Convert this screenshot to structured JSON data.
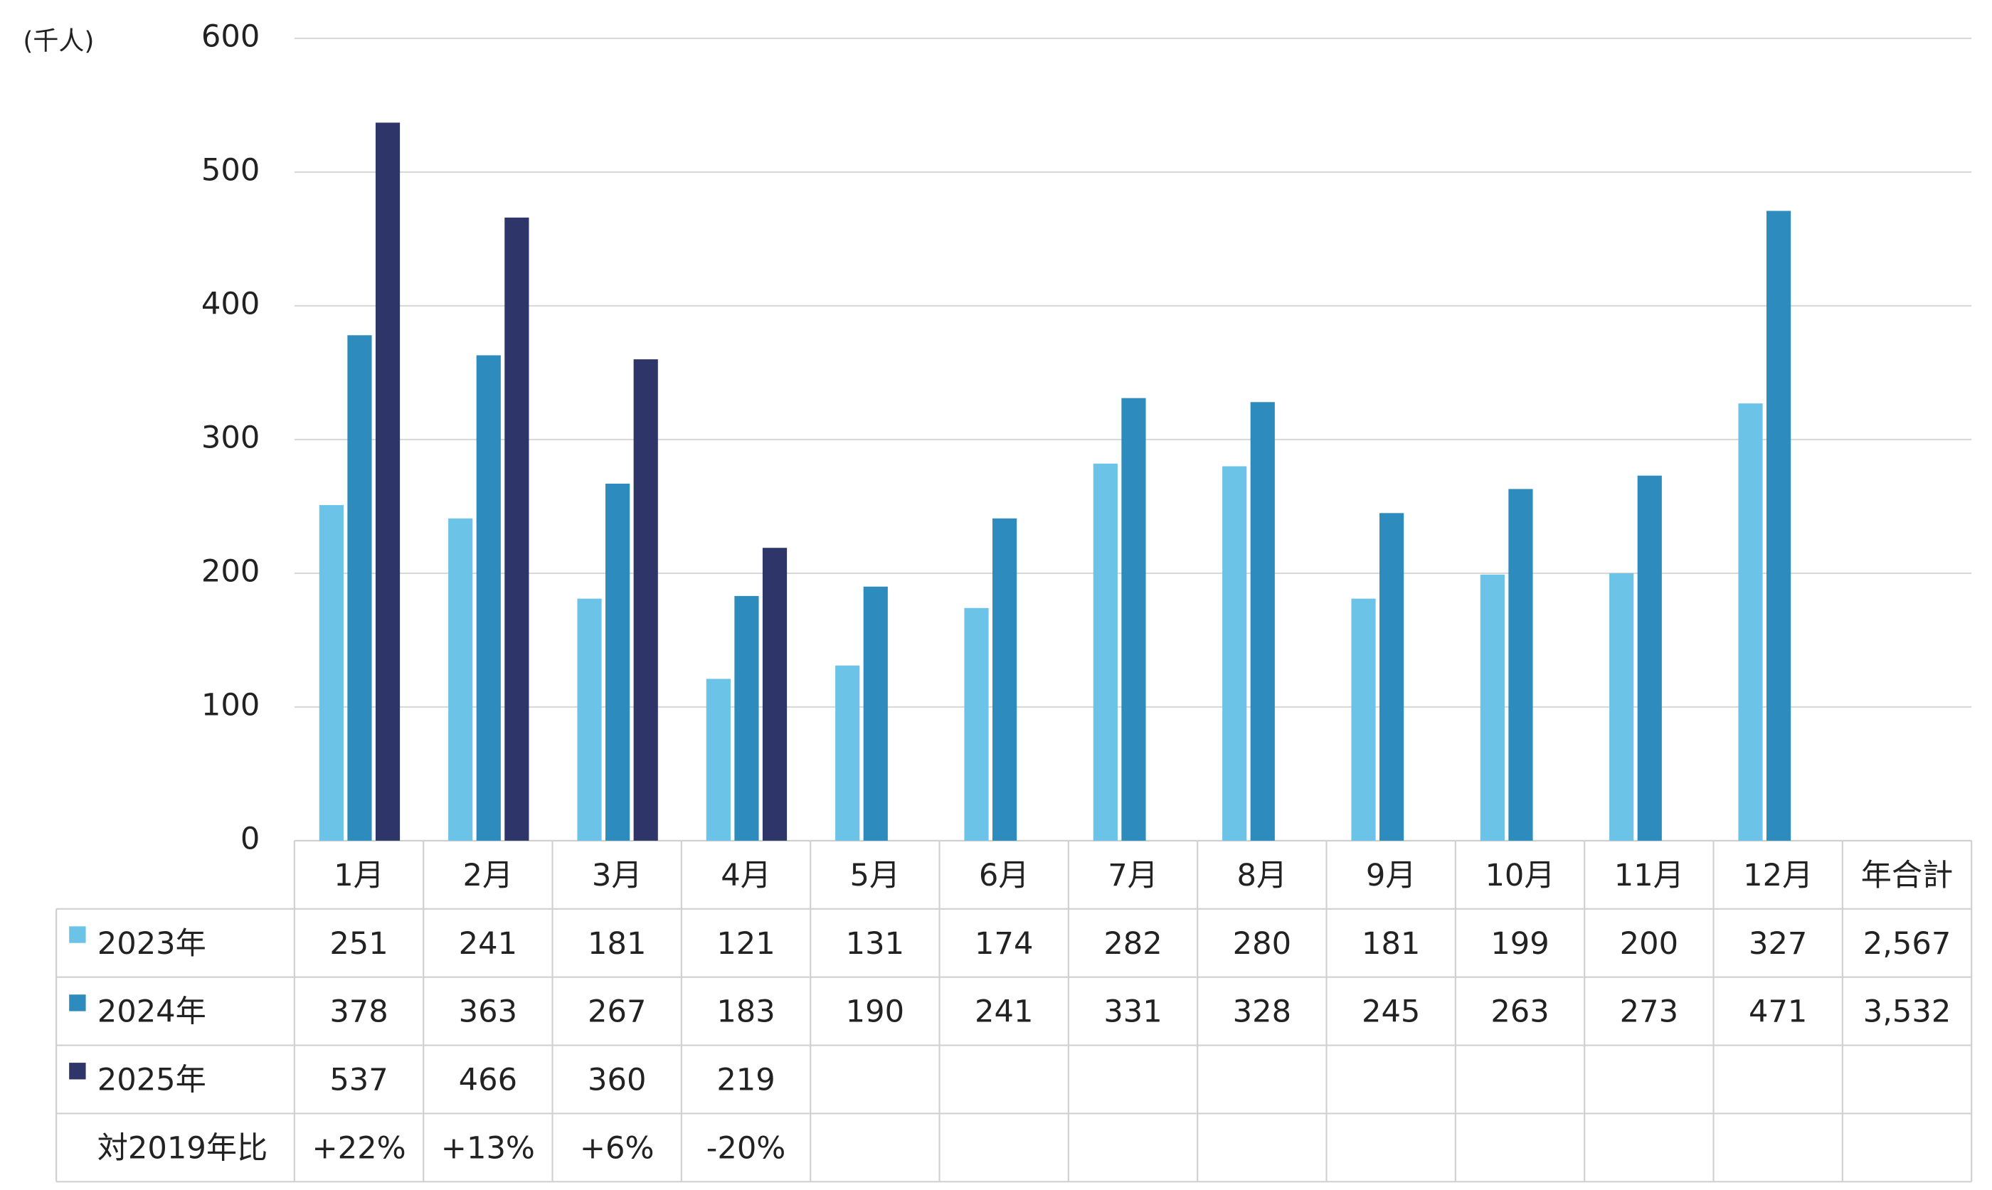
{
  "chart_data": {
    "type": "bar",
    "y_unit_label": "(千人)",
    "categories": [
      "1月",
      "2月",
      "3月",
      "4月",
      "5月",
      "6月",
      "7月",
      "8月",
      "9月",
      "10月",
      "11月",
      "12月"
    ],
    "total_header": "年合計",
    "series": [
      {
        "name": "2023年",
        "color": "#6cc3e8",
        "values": [
          251,
          241,
          181,
          121,
          131,
          174,
          282,
          280,
          181,
          199,
          200,
          327
        ],
        "total": 2567,
        "total_label": "2,567"
      },
      {
        "name": "2024年",
        "color": "#2e8bbd",
        "values": [
          378,
          363,
          267,
          183,
          190,
          241,
          331,
          328,
          245,
          263,
          273,
          471
        ],
        "total": 3532,
        "total_label": "3,532"
      },
      {
        "name": "2025年",
        "color": "#2e3568",
        "values": [
          537,
          466,
          360,
          219,
          null,
          null,
          null,
          null,
          null,
          null,
          null,
          null
        ]
      }
    ],
    "ratio_label": "対2019年比",
    "ratio_values": [
      22,
      13,
      6,
      -20,
      null,
      null,
      null,
      null,
      null,
      null,
      null,
      null
    ],
    "ratio_value_labels": [
      "+22%",
      "+13%",
      "+6%",
      "-20%",
      null,
      null,
      null,
      null,
      null,
      null,
      null,
      null
    ],
    "ylim": [
      0,
      600
    ],
    "yticks": [
      0,
      100,
      200,
      300,
      400,
      500,
      600
    ],
    "grid": true
  }
}
